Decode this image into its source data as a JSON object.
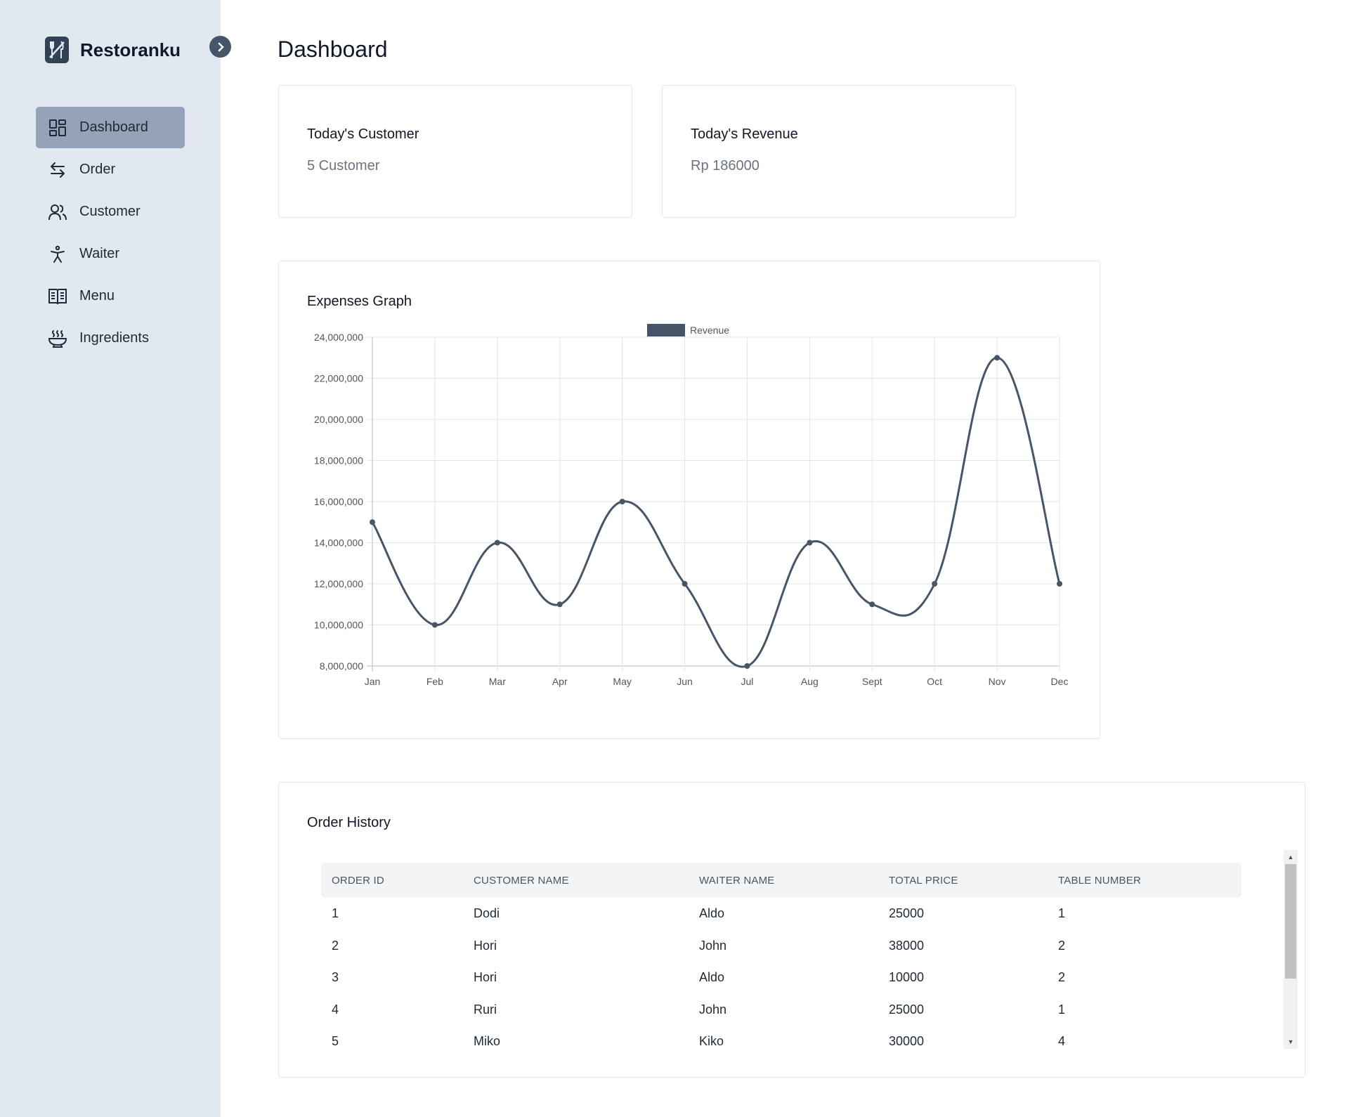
{
  "app": {
    "name": "Restoranku"
  },
  "sidebar": {
    "items": [
      {
        "label": "Dashboard",
        "icon": "dashboard-grid-icon",
        "active": true
      },
      {
        "label": "Order",
        "icon": "arrows-exchange-icon",
        "active": false
      },
      {
        "label": "Customer",
        "icon": "users-icon",
        "active": false
      },
      {
        "label": "Waiter",
        "icon": "person-icon",
        "active": false
      },
      {
        "label": "Menu",
        "icon": "book-open-icon",
        "active": false
      },
      {
        "label": "Ingredients",
        "icon": "bowl-steam-icon",
        "active": false
      }
    ]
  },
  "page": {
    "title": "Dashboard"
  },
  "stats": {
    "customer": {
      "label": "Today's Customer",
      "value": "5 Customer"
    },
    "revenue": {
      "label": "Today's Revenue",
      "value": "Rp 186000"
    }
  },
  "expenses": {
    "title": "Expenses Graph"
  },
  "chart_data": {
    "type": "line",
    "legend": "Revenue",
    "legend_position": "top",
    "categories": [
      "Jan",
      "Feb",
      "Mar",
      "Apr",
      "May",
      "Jun",
      "Jul",
      "Aug",
      "Sept",
      "Oct",
      "Nov",
      "Dec"
    ],
    "series": [
      {
        "name": "Revenue",
        "values": [
          15000000,
          10000000,
          14000000,
          11000000,
          16000000,
          12000000,
          8000000,
          14000000,
          11000000,
          12000000,
          23000000,
          12000000
        ]
      }
    ],
    "ylim": [
      8000000,
      24000000
    ],
    "yticks": [
      "24,000,000",
      "22,000,000",
      "20,000,000",
      "18,000,000",
      "16,000,000",
      "14,000,000",
      "12,000,000",
      "10,000,000",
      "8,000,000"
    ],
    "grid": true,
    "color": "#475569"
  },
  "orders": {
    "title": "Order History",
    "columns": [
      "ORDER ID",
      "CUSTOMER NAME",
      "WAITER NAME",
      "TOTAL PRICE",
      "TABLE NUMBER"
    ],
    "rows": [
      [
        "1",
        "Dodi",
        "Aldo",
        "25000",
        "1"
      ],
      [
        "2",
        "Hori",
        "John",
        "38000",
        "2"
      ],
      [
        "3",
        "Hori",
        "Aldo",
        "10000",
        "2"
      ],
      [
        "4",
        "Ruri",
        "John",
        "25000",
        "1"
      ],
      [
        "5",
        "Miko",
        "Kiko",
        "30000",
        "4"
      ]
    ]
  }
}
